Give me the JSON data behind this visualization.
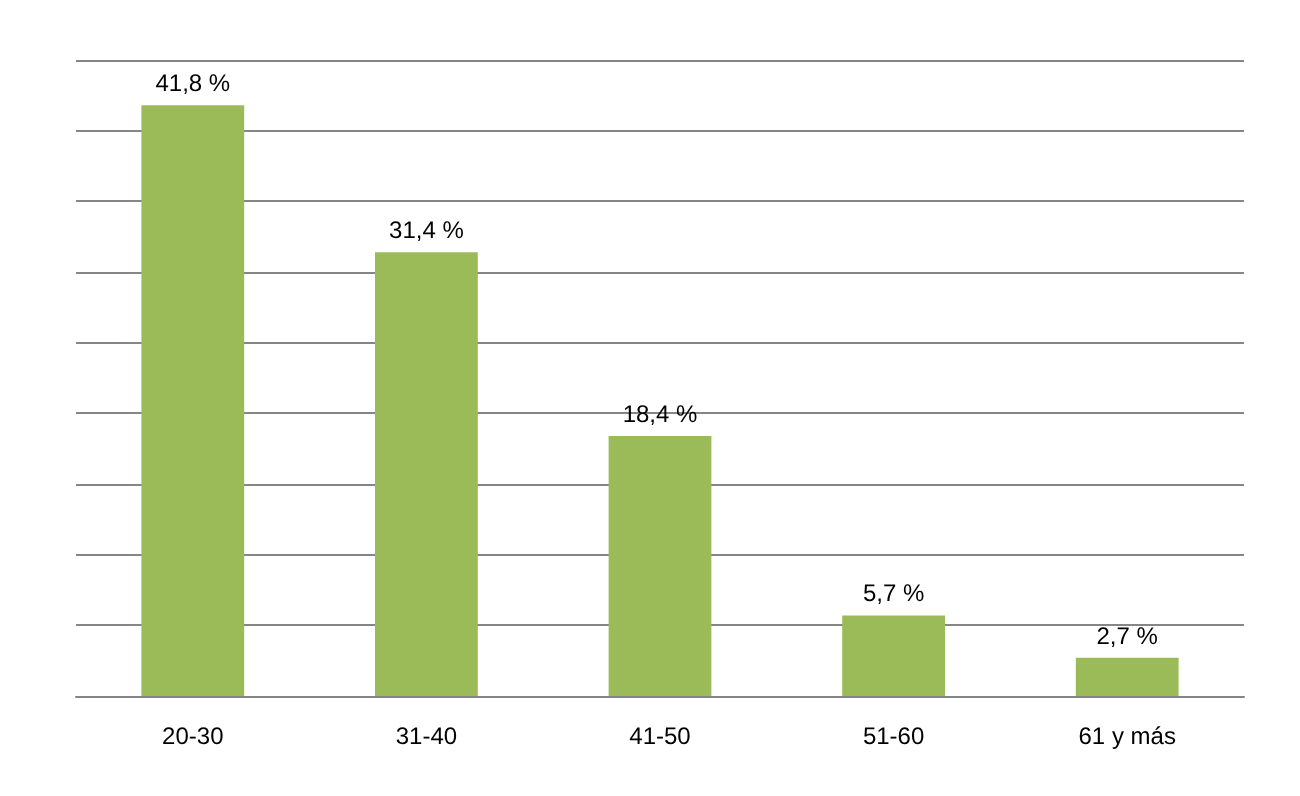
{
  "chart_data": {
    "type": "bar",
    "categories": [
      "20-30",
      "31-40",
      "41-50",
      "51-60",
      "61 y más"
    ],
    "values": [
      41.8,
      31.4,
      18.4,
      5.7,
      2.7
    ],
    "value_labels": [
      "41,8 %",
      "31,4 %",
      "18,4 %",
      "5,7 %",
      "2,7 %"
    ],
    "color": "#9bbb59",
    "ylim": [
      0,
      45
    ],
    "yticks": [
      {
        "value": 0,
        "label": null
      },
      {
        "value": 5,
        "label": null
      },
      {
        "value": 10,
        "label": null
      },
      {
        "value": 15,
        "label": null
      },
      {
        "value": 20,
        "label": null
      },
      {
        "value": 25,
        "label": null
      },
      {
        "value": 30,
        "label": null
      },
      {
        "value": 35,
        "label": null
      },
      {
        "value": 40,
        "label": null
      },
      {
        "value": 45,
        "label": null
      }
    ],
    "grid": "y",
    "tick_labels": "x"
  }
}
